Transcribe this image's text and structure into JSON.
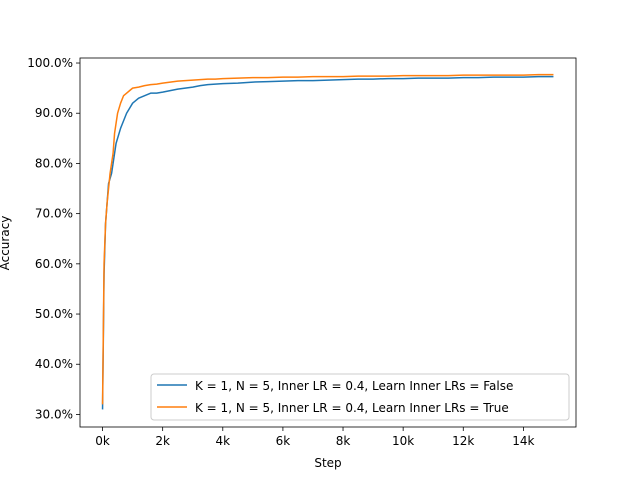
{
  "chart_data": {
    "type": "line",
    "xlabel": "Step",
    "ylabel": "Accuracy",
    "xlim": [
      -750,
      15750
    ],
    "ylim": [
      0.275,
      1.01
    ],
    "x_ticks": [
      0,
      2000,
      4000,
      6000,
      8000,
      10000,
      12000,
      14000
    ],
    "x_tick_labels": [
      "0k",
      "2k",
      "4k",
      "6k",
      "8k",
      "10k",
      "12k",
      "14k"
    ],
    "y_ticks": [
      0.3,
      0.4,
      0.5,
      0.6,
      0.7,
      0.8,
      0.9,
      1.0
    ],
    "y_tick_labels": [
      "30.0%",
      "40.0%",
      "50.0%",
      "60.0%",
      "70.0%",
      "80.0%",
      "90.0%",
      "100.0%"
    ],
    "grid": false,
    "legend_position": "lower-right",
    "series": [
      {
        "name": "K = 1, N = 5, Inner LR = 0.4, Learn Inner LRs = False",
        "color": "#1f77b4",
        "x": [
          0,
          50,
          100,
          150,
          200,
          250,
          300,
          350,
          400,
          450,
          500,
          600,
          700,
          800,
          900,
          1000,
          1200,
          1400,
          1600,
          1800,
          2000,
          2250,
          2500,
          2750,
          3000,
          3250,
          3500,
          3750,
          4000,
          4500,
          5000,
          5500,
          6000,
          6500,
          7000,
          7500,
          8000,
          8500,
          9000,
          9500,
          10000,
          10500,
          11000,
          11500,
          12000,
          12500,
          13000,
          13500,
          14000,
          14500,
          15000
        ],
        "y": [
          0.31,
          0.58,
          0.68,
          0.72,
          0.76,
          0.77,
          0.78,
          0.8,
          0.82,
          0.84,
          0.85,
          0.87,
          0.885,
          0.9,
          0.91,
          0.92,
          0.93,
          0.935,
          0.94,
          0.94,
          0.942,
          0.945,
          0.948,
          0.95,
          0.952,
          0.955,
          0.957,
          0.958,
          0.959,
          0.96,
          0.962,
          0.963,
          0.964,
          0.965,
          0.965,
          0.966,
          0.967,
          0.968,
          0.968,
          0.969,
          0.969,
          0.97,
          0.97,
          0.97,
          0.971,
          0.971,
          0.972,
          0.972,
          0.972,
          0.973,
          0.973
        ]
      },
      {
        "name": "K = 1, N = 5, Inner LR = 0.4, Learn Inner LRs = True",
        "color": "#ff7f0e",
        "x": [
          0,
          50,
          100,
          150,
          200,
          250,
          300,
          350,
          400,
          450,
          500,
          600,
          700,
          800,
          900,
          1000,
          1200,
          1400,
          1600,
          1800,
          2000,
          2250,
          2500,
          2750,
          3000,
          3250,
          3500,
          3750,
          4000,
          4500,
          5000,
          5500,
          6000,
          6500,
          7000,
          7500,
          8000,
          8500,
          9000,
          9500,
          10000,
          10500,
          11000,
          11500,
          12000,
          12500,
          13000,
          13500,
          14000,
          14500,
          15000
        ],
        "y": [
          0.32,
          0.6,
          0.68,
          0.72,
          0.75,
          0.78,
          0.8,
          0.82,
          0.86,
          0.88,
          0.9,
          0.92,
          0.935,
          0.94,
          0.945,
          0.95,
          0.952,
          0.955,
          0.957,
          0.958,
          0.96,
          0.962,
          0.964,
          0.965,
          0.966,
          0.967,
          0.968,
          0.968,
          0.969,
          0.97,
          0.971,
          0.971,
          0.972,
          0.972,
          0.973,
          0.973,
          0.973,
          0.974,
          0.974,
          0.974,
          0.975,
          0.975,
          0.975,
          0.975,
          0.976,
          0.976,
          0.976,
          0.976,
          0.976,
          0.977,
          0.977
        ]
      }
    ]
  }
}
